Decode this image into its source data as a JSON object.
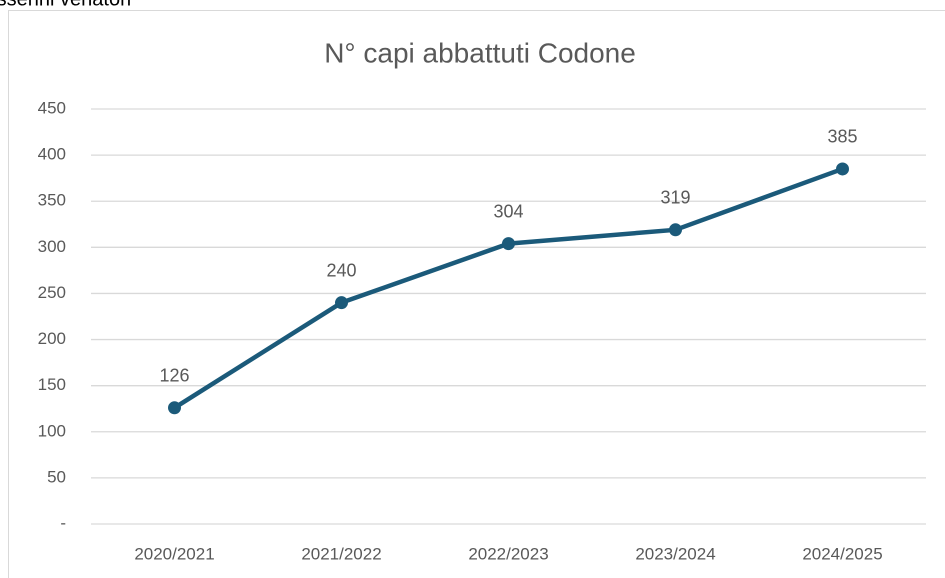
{
  "caption": "tesserini venatori",
  "chart_data": {
    "type": "line",
    "title": "N° capi abbattuti Codone",
    "categories": [
      "2020/2021",
      "2021/2022",
      "2022/2023",
      "2023/2024",
      "2024/2025"
    ],
    "values": [
      126,
      240,
      304,
      319,
      385
    ],
    "color": "#1b5a7a",
    "ylim": [
      0,
      450
    ],
    "yticks": [
      {
        "value": 0,
        "label": "-"
      },
      50,
      100,
      150,
      200,
      250,
      300,
      350,
      400,
      450
    ],
    "grid": true
  }
}
